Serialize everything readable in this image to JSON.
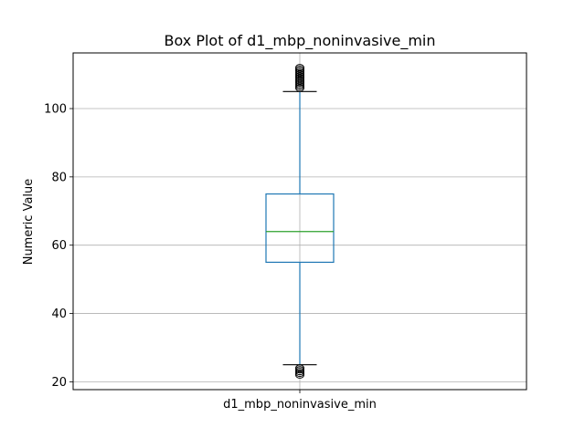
{
  "chart_data": {
    "type": "box",
    "title": "Box Plot of d1_mbp_noninvasive_min",
    "xlabel": "",
    "ylabel": "Numeric Value",
    "categories": [
      "d1_mbp_noninvasive_min"
    ],
    "ylim": [
      17.7,
      116.3
    ],
    "yticks": [
      20,
      40,
      60,
      80,
      100
    ],
    "grid": true,
    "boxes": [
      {
        "name": "d1_mbp_noninvasive_min",
        "whisker_low": 25,
        "q1": 55,
        "median": 64,
        "q3": 75,
        "whisker_high": 105,
        "outliers_high": [
          106,
          106.5,
          107,
          107.5,
          108,
          108.5,
          109,
          109.5,
          110,
          110.5,
          111,
          111.5,
          112
        ],
        "outliers_low": [
          22,
          22.5,
          23,
          23.5,
          24
        ]
      }
    ],
    "colors": {
      "box": "#1f77b4",
      "whisker": "#1f77b4",
      "median": "#2ca02c",
      "cap": "#000000",
      "grid": "#b0b0b0",
      "outlier": "#000000"
    }
  }
}
